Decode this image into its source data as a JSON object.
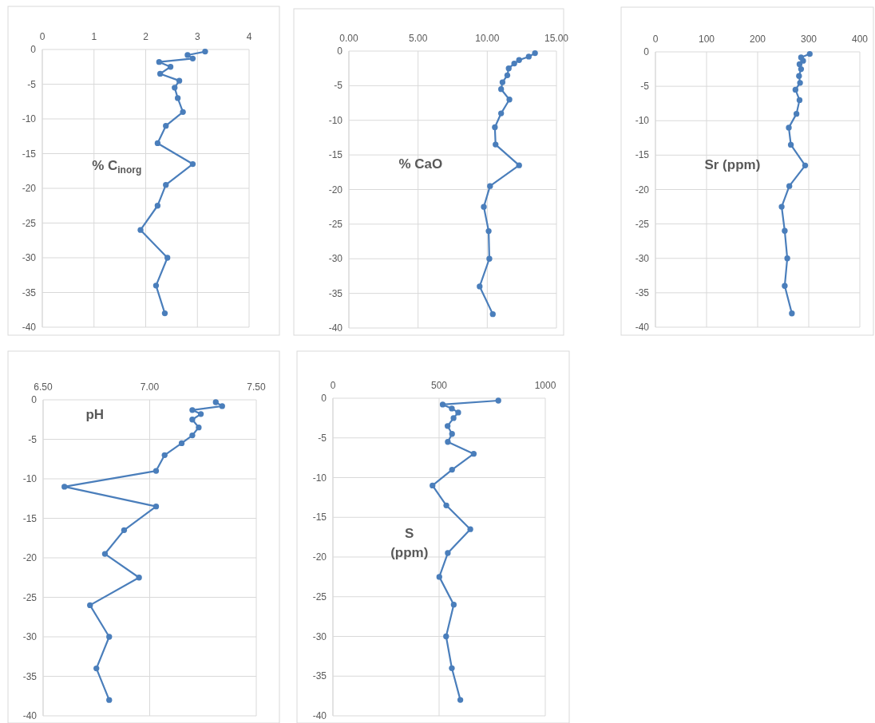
{
  "chart_data": [
    {
      "type": "line",
      "annotations": [
        "% C$_{inorg}$"
      ],
      "xlim": [
        0,
        4
      ],
      "xticks": [
        0,
        1,
        2,
        3,
        4
      ],
      "ylim": [
        -40,
        0
      ],
      "yticks": [
        0,
        -5,
        -10,
        -15,
        -20,
        -25,
        -30,
        -35,
        -40
      ],
      "grid": true,
      "marker": "circle",
      "line_style": "solid",
      "series": [
        {
          "color": "#4a7ebb",
          "x": [
            3.15,
            2.81,
            2.91,
            2.26,
            2.48,
            2.28,
            2.65,
            2.56,
            2.62,
            2.72,
            2.39,
            2.23,
            2.91,
            2.39,
            2.23,
            1.9,
            2.42,
            2.2,
            2.37
          ],
          "values": [
            -0.3,
            -0.8,
            -1.3,
            -1.8,
            -2.5,
            -3.5,
            -4.5,
            -5.5,
            -7,
            -9,
            -11,
            -13.5,
            -16.5,
            -19.5,
            -22.5,
            -26,
            -30,
            -34,
            -38
          ]
        }
      ]
    },
    {
      "type": "line",
      "annotations": [
        "% CaO"
      ],
      "xlim": [
        0,
        15
      ],
      "xticks": [
        {
          "value": 0,
          "label": "0.00"
        },
        {
          "value": 5,
          "label": "5.00"
        },
        {
          "value": 10,
          "label": "10.00"
        },
        {
          "value": 15,
          "label": "15.00"
        }
      ],
      "ylim": [
        -40,
        0
      ],
      "yticks": [
        0,
        -5,
        -10,
        -15,
        -20,
        -25,
        -30,
        -35,
        -40
      ],
      "grid": true,
      "marker": "circle",
      "line_style": "solid",
      "series": [
        {
          "color": "#4a7ebb",
          "x": [
            13.45,
            13.0,
            12.3,
            11.95,
            11.55,
            11.45,
            11.1,
            11.0,
            11.6,
            11.0,
            10.55,
            10.6,
            12.3,
            10.2,
            9.75,
            10.1,
            10.15,
            9.45,
            10.4
          ],
          "values": [
            -0.3,
            -0.8,
            -1.3,
            -1.8,
            -2.5,
            -3.5,
            -4.5,
            -5.5,
            -7,
            -9,
            -11,
            -13.5,
            -16.5,
            -19.5,
            -22.5,
            -26,
            -30,
            -34,
            -38
          ]
        }
      ]
    },
    {
      "type": "line",
      "annotations": [
        "Sr (ppm)"
      ],
      "xlim": [
        0,
        400
      ],
      "xticks": [
        0,
        100,
        200,
        300,
        400
      ],
      "ylim": [
        -40,
        0
      ],
      "yticks": [
        0,
        -5,
        -10,
        -15,
        -20,
        -25,
        -30,
        -35,
        -40
      ],
      "grid": true,
      "marker": "circle",
      "line_style": "solid",
      "series": [
        {
          "color": "#4a7ebb",
          "x": [
            302,
            285,
            289,
            282,
            285,
            281,
            283,
            274,
            282,
            276,
            261,
            265,
            293,
            262,
            247,
            253,
            258,
            253,
            267
          ],
          "values": [
            -0.3,
            -0.8,
            -1.3,
            -1.8,
            -2.5,
            -3.5,
            -4.5,
            -5.5,
            -7,
            -9,
            -11,
            -13.5,
            -16.5,
            -19.5,
            -22.5,
            -26,
            -30,
            -34,
            -38
          ]
        }
      ]
    },
    {
      "type": "line",
      "annotations": [
        "pH"
      ],
      "xlim": [
        6.5,
        7.5
      ],
      "xticks": [
        {
          "value": 6.5,
          "label": "6.50"
        },
        {
          "value": 7,
          "label": "7.00"
        },
        {
          "value": 7.5,
          "label": "7.50"
        }
      ],
      "ylim": [
        -40,
        0
      ],
      "yticks": [
        0,
        -5,
        -10,
        -15,
        -20,
        -25,
        -30,
        -35,
        -40
      ],
      "grid": true,
      "marker": "circle",
      "line_style": "solid",
      "series": [
        {
          "color": "#4a7ebb",
          "x": [
            7.31,
            7.34,
            7.2,
            7.24,
            7.2,
            7.23,
            7.2,
            7.15,
            7.07,
            7.03,
            6.6,
            7.03,
            6.88,
            6.79,
            6.95,
            6.72,
            6.81,
            6.75,
            6.81
          ],
          "values": [
            -0.3,
            -0.8,
            -1.3,
            -1.8,
            -2.5,
            -3.5,
            -4.5,
            -5.5,
            -7,
            -9,
            -11,
            -13.5,
            -16.5,
            -19.5,
            -22.5,
            -26,
            -30,
            -34,
            -38
          ]
        }
      ]
    },
    {
      "type": "line",
      "annotations": [
        "S (ppm)"
      ],
      "xlim": [
        0,
        1000
      ],
      "xticks": [
        0,
        500,
        1000
      ],
      "ylim": [
        -40,
        0
      ],
      "yticks": [
        0,
        -5,
        -10,
        -15,
        -20,
        -25,
        -30,
        -35,
        -40
      ],
      "grid": true,
      "marker": "circle",
      "line_style": "solid",
      "series": [
        {
          "color": "#4a7ebb",
          "x": [
            779,
            517,
            560,
            590,
            568,
            540,
            561,
            541,
            663,
            561,
            469,
            534,
            647,
            541,
            501,
            569,
            533,
            560,
            600
          ],
          "values": [
            -0.3,
            -0.8,
            -1.3,
            -1.8,
            -2.5,
            -3.5,
            -4.5,
            -5.5,
            -7,
            -9,
            -11,
            -13.5,
            -16.5,
            -19.5,
            -22.5,
            -26,
            -30,
            -34,
            -38
          ]
        }
      ]
    }
  ]
}
